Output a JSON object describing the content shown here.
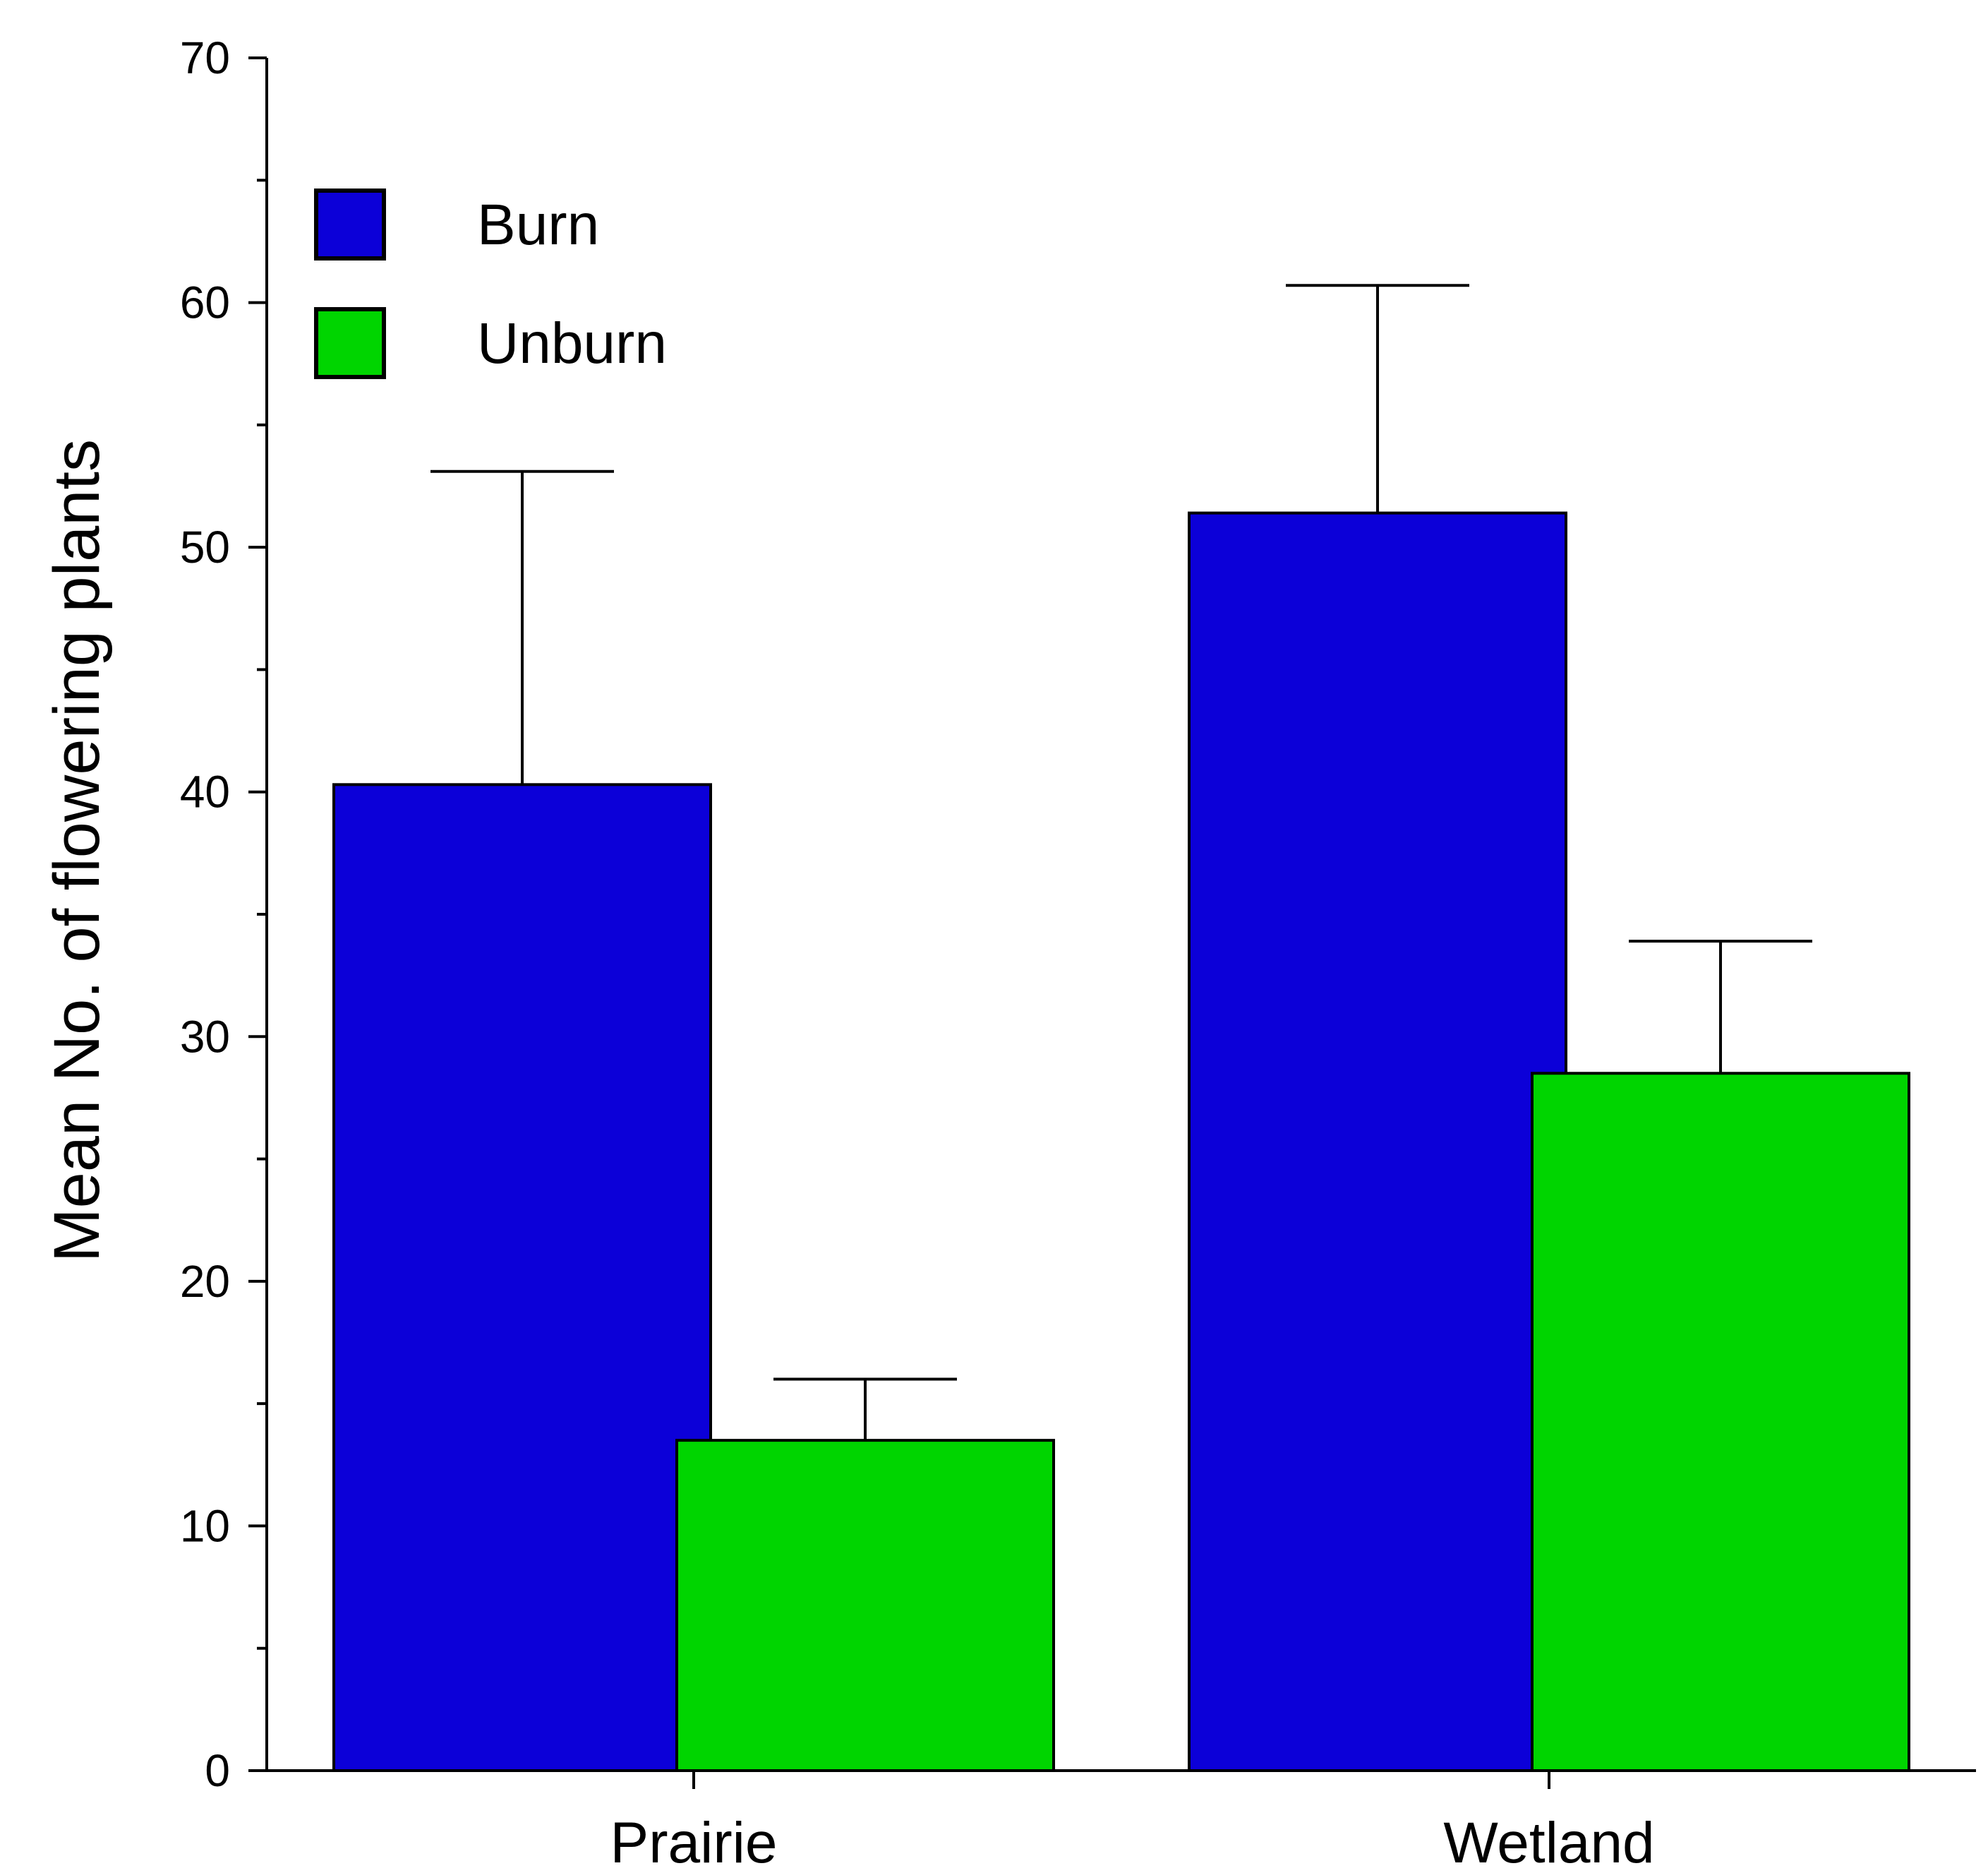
{
  "chart_data": {
    "type": "bar",
    "title": "",
    "xlabel": "",
    "ylabel": "Mean No. of flowering plants",
    "ylim": [
      0,
      70
    ],
    "yticks": [
      0,
      10,
      20,
      30,
      40,
      50,
      60,
      70
    ],
    "y_minor_step": 5,
    "grid": false,
    "legend_position": "top-left",
    "categories": [
      "Prairie",
      "Wetland"
    ],
    "series": [
      {
        "name": "Burn",
        "color": "#0c00d8",
        "values": [
          40.3,
          51.4
        ],
        "error_upper": [
          12.8,
          9.3
        ]
      },
      {
        "name": "Unburn",
        "color": "#00d500",
        "values": [
          13.5,
          28.5
        ],
        "error_upper": [
          2.5,
          5.4
        ]
      }
    ]
  }
}
